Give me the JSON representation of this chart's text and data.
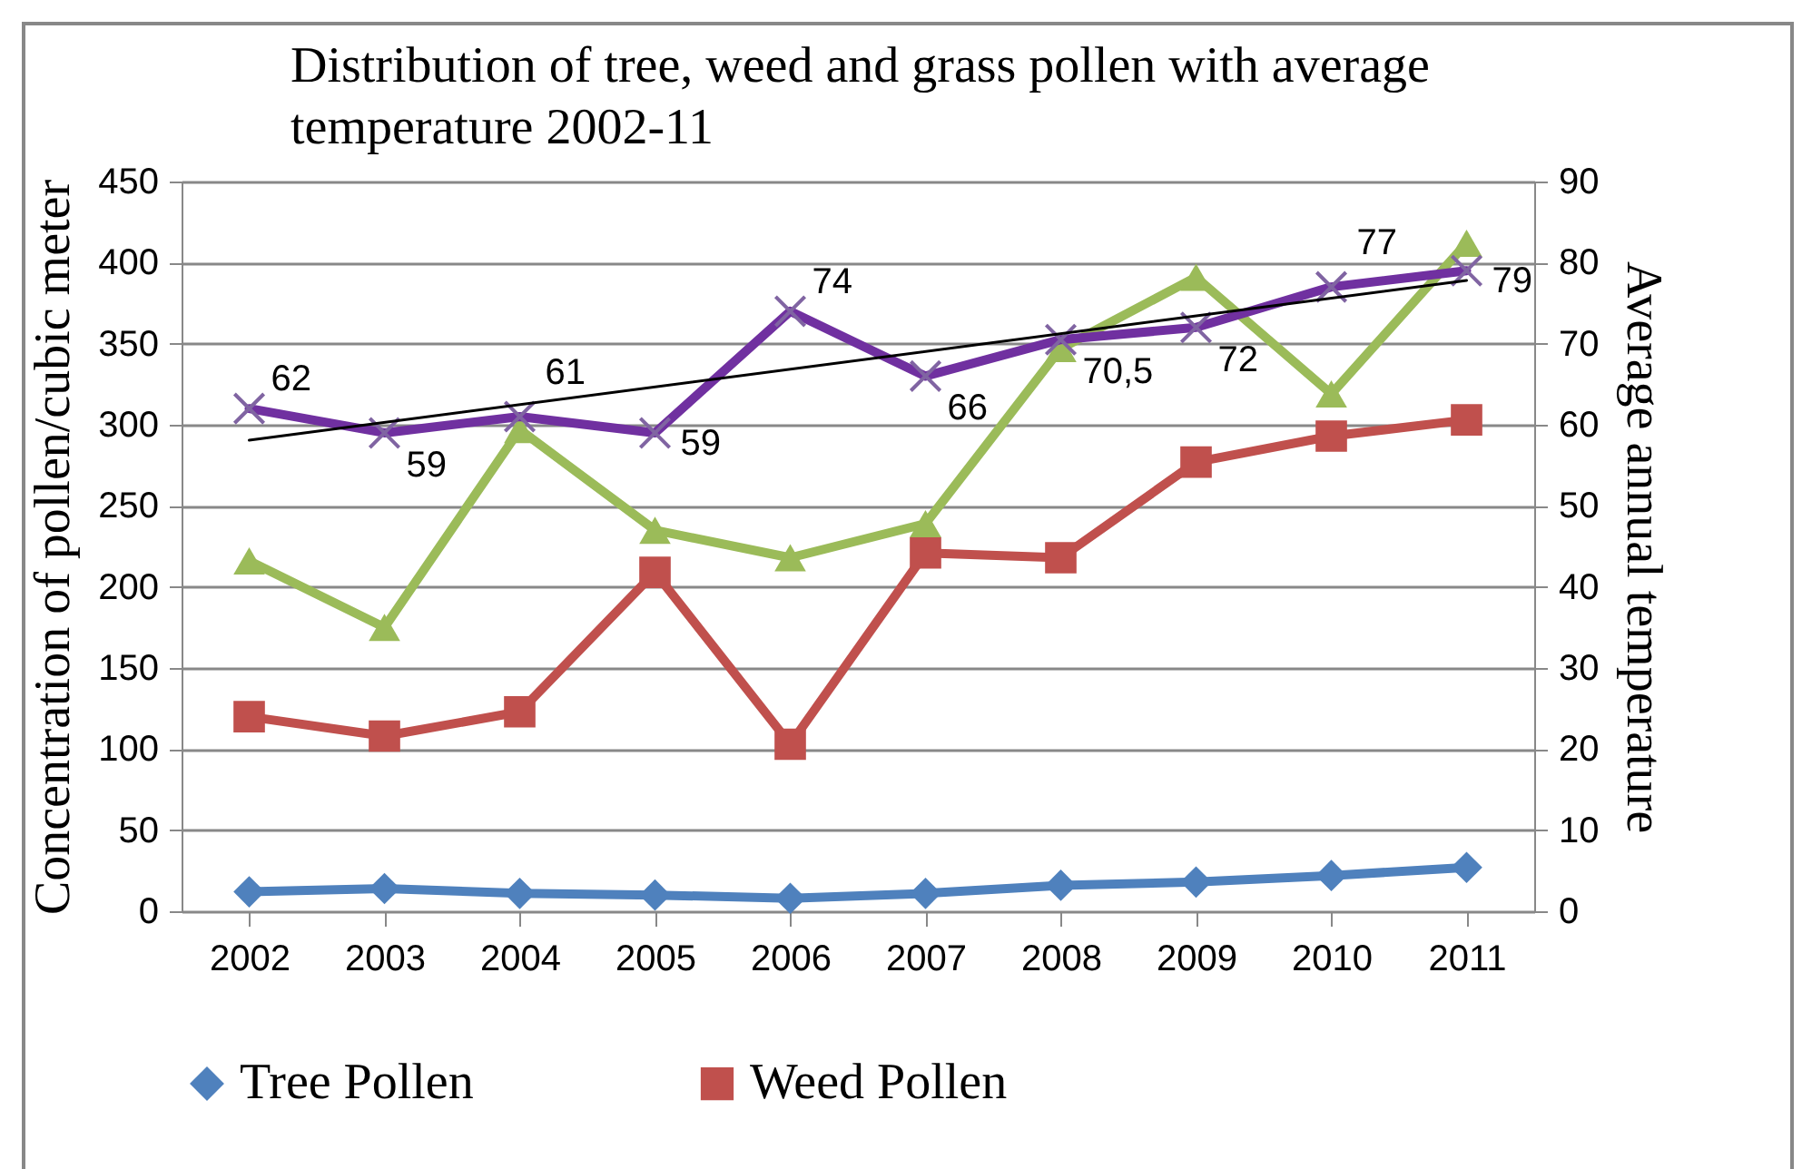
{
  "chart_data": {
    "type": "line",
    "title": "Distribution of tree, weed and grass pollen with average temperature 2002-11",
    "ylabel": "Concentration of pollen/cubic meter",
    "y2label": "Average annual temperature",
    "x": [
      2002,
      2003,
      2004,
      2005,
      2006,
      2007,
      2008,
      2009,
      2010,
      2011
    ],
    "xlim": [
      2001.5,
      2011.5
    ],
    "xticks": [
      2002,
      2003,
      2004,
      2005,
      2006,
      2007,
      2008,
      2009,
      2010,
      2011
    ],
    "ylim": [
      0,
      450
    ],
    "yticks": [
      0,
      50,
      100,
      150,
      200,
      250,
      300,
      350,
      400,
      450
    ],
    "y2lim": [
      0,
      90
    ],
    "y2ticks": [
      0,
      10,
      20,
      30,
      40,
      50,
      60,
      70,
      80,
      90
    ],
    "grid": "y",
    "legend": "bottom",
    "series": [
      {
        "name": "Tree Pollen",
        "color": "#4f81bd",
        "marker": "diamond",
        "values": [
          12,
          14,
          11,
          10,
          8,
          11,
          16,
          18,
          22,
          27
        ]
      },
      {
        "name": "Weed Pollen",
        "color": "#c0504d",
        "marker": "square",
        "values": [
          120,
          108,
          123,
          209,
          103,
          221,
          218,
          277,
          293,
          303
        ]
      },
      {
        "color": "#9bbb59",
        "marker": "triangle",
        "values": [
          216,
          175,
          297,
          235,
          218,
          239,
          347,
          391,
          319,
          412
        ]
      },
      {
        "color": "#7030a0",
        "marker": "cross",
        "axis": "y2",
        "values": [
          62,
          59,
          61,
          59,
          74,
          66,
          70.5,
          72,
          77,
          79
        ],
        "value_labels": [
          "62",
          "59",
          "61",
          "59",
          "74",
          "66",
          "70,5",
          "72",
          "77",
          "79"
        ]
      },
      {
        "type": "line",
        "color": "#000000",
        "marker": "none",
        "axis": "y2",
        "x": [
          2002,
          2011
        ],
        "values": [
          58.1,
          77.8
        ]
      }
    ]
  }
}
